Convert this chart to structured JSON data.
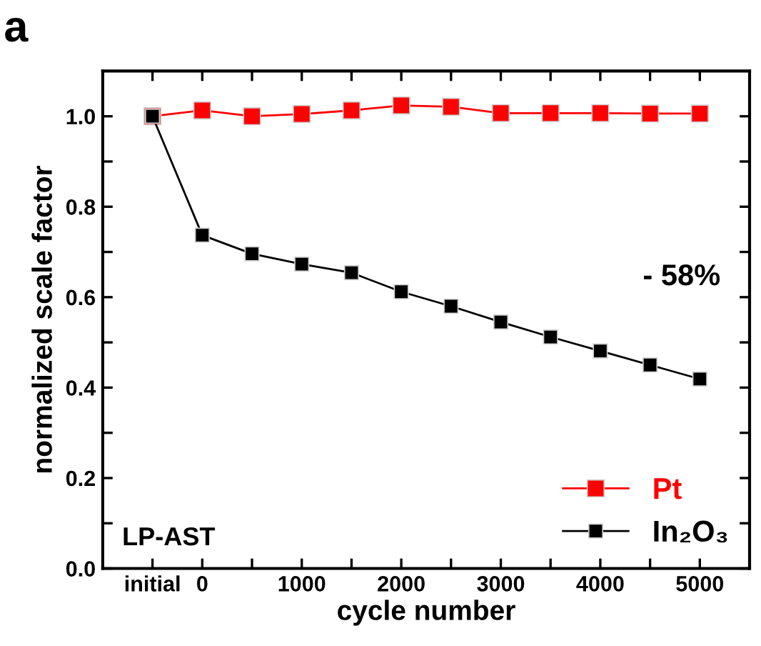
{
  "chart_data": {
    "type": "line",
    "xlabel": "cycle number",
    "ylabel": "normalized scale factor",
    "x": [
      -500,
      0,
      500,
      1000,
      1500,
      2000,
      2500,
      3000,
      3500,
      4000,
      4500,
      5000
    ],
    "series": [
      {
        "name": "Pt",
        "color": "#ff0000",
        "values": [
          1.0,
          1.013,
          1.0,
          1.005,
          1.013,
          1.024,
          1.021,
          1.007,
          1.007,
          1.007,
          1.006,
          1.006
        ]
      },
      {
        "name": "In₂O₃",
        "color": "#000000",
        "values": [
          1.0,
          0.737,
          0.696,
          0.673,
          0.654,
          0.612,
          0.58,
          0.545,
          0.512,
          0.481,
          0.45,
          0.419
        ]
      }
    ],
    "xlim": [
      -1000,
      5500
    ],
    "xticks": [
      {
        "value": -500,
        "label": "initial"
      },
      0,
      {
        "value": 500,
        "label": null
      },
      1000,
      {
        "value": 1500,
        "label": null
      },
      2000,
      {
        "value": 2500,
        "label": null
      },
      3000,
      {
        "value": 3500,
        "label": null
      },
      4000,
      {
        "value": 4500,
        "label": null
      },
      5000
    ],
    "ylim": [
      0,
      1.1
    ],
    "yticks": [
      {
        "value": 0,
        "label": "0.0"
      },
      {
        "value": 0.1,
        "label": null
      },
      {
        "value": 0.2,
        "label": "0.2"
      },
      {
        "value": 0.3,
        "label": null
      },
      {
        "value": 0.4,
        "label": "0.4"
      },
      {
        "value": 0.5,
        "label": null
      },
      {
        "value": 0.6,
        "label": "0.6"
      },
      {
        "value": 0.7,
        "label": null
      },
      {
        "value": 0.8,
        "label": "0.8"
      },
      {
        "value": 0.9,
        "label": null
      },
      {
        "value": 1.0,
        "label": "1.0"
      }
    ],
    "annotations": [
      "a",
      "- 58%",
      "LP-AST"
    ],
    "legend": "bottom right",
    "grid": false,
    "marker": "square",
    "line_style": "solid"
  }
}
